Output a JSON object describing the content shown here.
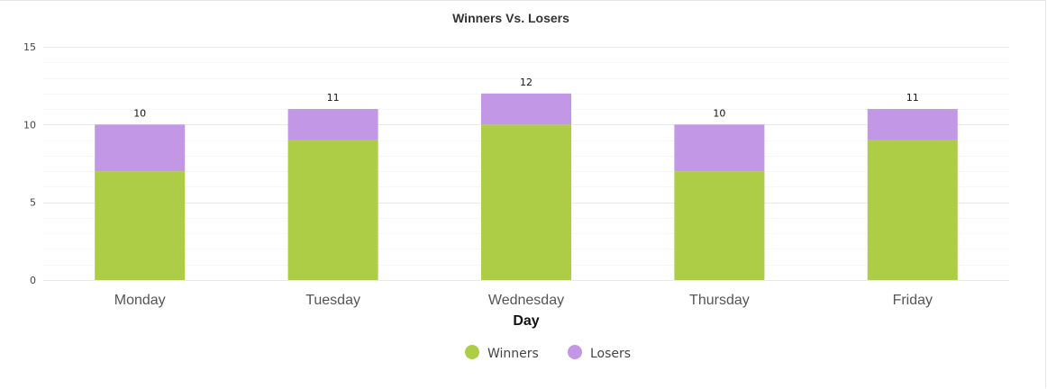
{
  "chart_data": {
    "type": "bar",
    "stacked": true,
    "title": "Winners Vs. Losers",
    "xlabel": "Day",
    "ylabel": "",
    "categories": [
      "Monday",
      "Tuesday",
      "Wednesday",
      "Thursday",
      "Friday"
    ],
    "series": [
      {
        "name": "Winners",
        "values": [
          7,
          9,
          10,
          7,
          9
        ],
        "color": "#aecd47"
      },
      {
        "name": "Losers",
        "values": [
          3,
          2,
          2,
          3,
          2
        ],
        "color": "#c297e6"
      }
    ],
    "totals": [
      10,
      11,
      12,
      10,
      11
    ],
    "ylim": [
      0,
      15
    ],
    "yticks": [
      0,
      5,
      10,
      15
    ],
    "grid": true,
    "legend_position": "bottom"
  }
}
